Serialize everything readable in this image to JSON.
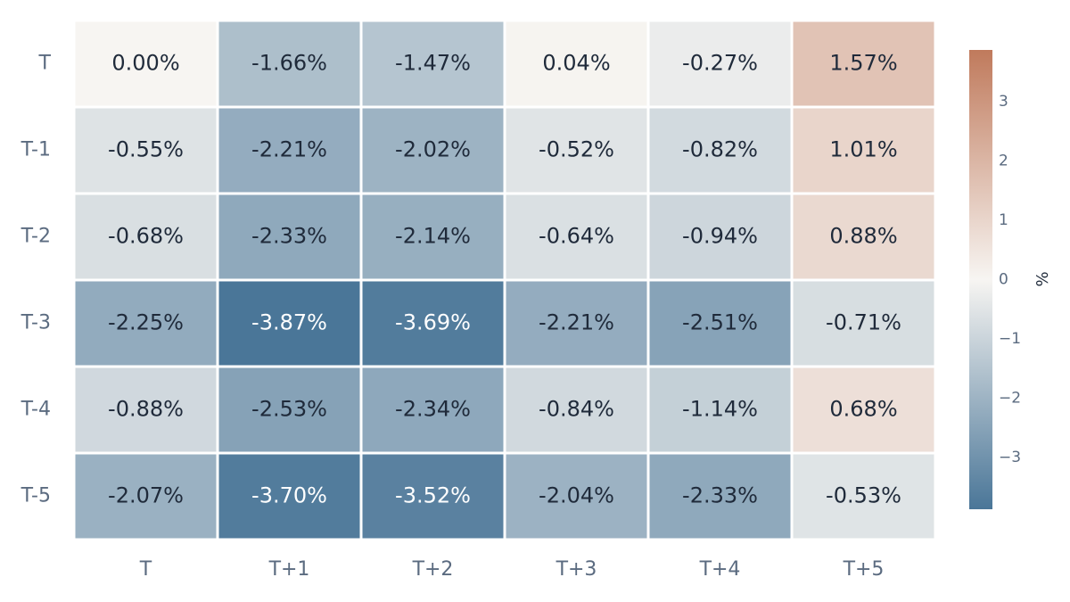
{
  "chart_data": {
    "type": "heatmap",
    "title": "",
    "xlabel": "",
    "ylabel": "",
    "x_categories": [
      "T",
      "T+1",
      "T+2",
      "T+3",
      "T+4",
      "T+5"
    ],
    "y_categories": [
      "T",
      "T-1",
      "T-2",
      "T-3",
      "T-4",
      "T-5"
    ],
    "values": [
      [
        0.0,
        -1.66,
        -1.47,
        0.04,
        -0.27,
        1.57
      ],
      [
        -0.55,
        -2.21,
        -2.02,
        -0.52,
        -0.82,
        1.01
      ],
      [
        -0.68,
        -2.33,
        -2.14,
        -0.64,
        -0.94,
        0.88
      ],
      [
        -2.25,
        -3.87,
        -3.69,
        -2.21,
        -2.51,
        -0.71
      ],
      [
        -0.88,
        -2.53,
        -2.34,
        -0.84,
        -1.14,
        0.68
      ],
      [
        -2.07,
        -3.7,
        -3.52,
        -2.04,
        -2.33,
        -0.53
      ]
    ],
    "value_labels": [
      [
        "0.00%",
        "-1.66%",
        "-1.47%",
        "0.04%",
        "-0.27%",
        "1.57%"
      ],
      [
        "-0.55%",
        "-2.21%",
        "-2.02%",
        "-0.52%",
        "-0.82%",
        "1.01%"
      ],
      [
        "-0.68%",
        "-2.33%",
        "-2.14%",
        "-0.64%",
        "-0.94%",
        "0.88%"
      ],
      [
        "-2.25%",
        "-3.87%",
        "-3.69%",
        "-2.21%",
        "-2.51%",
        "-0.71%"
      ],
      [
        "-0.88%",
        "-2.53%",
        "-2.34%",
        "-0.84%",
        "-1.14%",
        "0.68%"
      ],
      [
        "-2.07%",
        "-3.70%",
        "-3.52%",
        "-2.04%",
        "-2.33%",
        "-0.53%"
      ]
    ],
    "colorbar": {
      "title": "%",
      "range": [
        -3.87,
        3.87
      ],
      "ticks": [
        3,
        2,
        1,
        0,
        -1,
        -2,
        -3
      ],
      "tick_labels": [
        "3",
        "2",
        "1",
        "0",
        "−1",
        "−2",
        "−3"
      ]
    },
    "colors": {
      "negative": "#4a7698",
      "neutral": "#f7f5f2",
      "positive": "#c07a5c",
      "dark_text": "#1f2a3a",
      "light_text": "#ffffff"
    },
    "grid": false
  }
}
